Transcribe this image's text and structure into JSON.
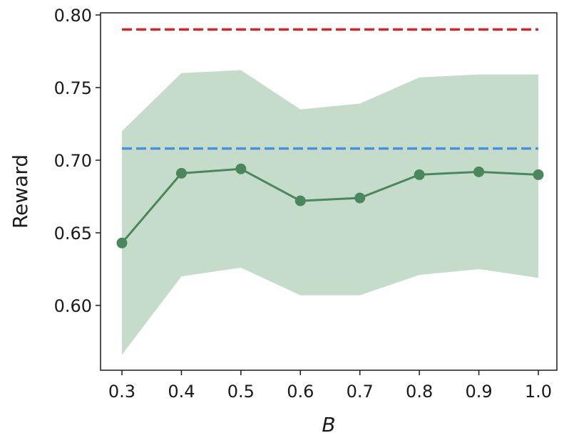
{
  "chart_data": {
    "type": "line",
    "title": "",
    "xlabel": "B",
    "ylabel": "Reward",
    "xlim": [
      0.3,
      1.0
    ],
    "ylim": [
      0.55,
      0.8
    ],
    "grid": false,
    "legend": "none",
    "x": [
      0.3,
      0.4,
      0.5,
      0.6,
      0.7,
      0.8,
      0.9,
      1.0
    ],
    "x_tick_labels": [
      "0.3",
      "0.4",
      "0.5",
      "0.6",
      "0.7",
      "0.8",
      "0.9",
      "1.0"
    ],
    "y_ticks": [
      0.6,
      0.65,
      0.7,
      0.75,
      0.8
    ],
    "y_tick_labels": [
      "0.60",
      "0.65",
      "0.70",
      "0.75",
      "0.80"
    ],
    "series": [
      {
        "values": [
          0.643,
          0.691,
          0.694,
          0.672,
          0.674,
          0.69,
          0.692,
          0.69
        ],
        "lower": [
          0.566,
          0.62,
          0.626,
          0.607,
          0.607,
          0.621,
          0.625,
          0.619
        ],
        "upper": [
          0.72,
          0.76,
          0.762,
          0.735,
          0.739,
          0.757,
          0.759,
          0.759
        ],
        "color": "#4a875c",
        "band_color": "#c5dccb",
        "style": "solid-markers"
      }
    ],
    "reference_lines": [
      {
        "value": 0.79,
        "color": "#d62728",
        "style": "dashed"
      },
      {
        "value": 0.708,
        "color": "#4a90e2",
        "style": "dashed"
      }
    ]
  }
}
